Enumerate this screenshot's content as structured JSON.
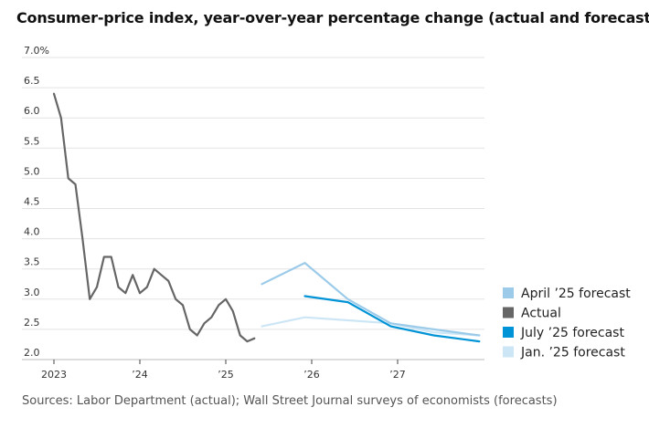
{
  "title": "Consumer-price index, year-over-year percentage change (actual and forecasts)",
  "source": "Sources: Labor Department (actual); Wall Street Journal surveys of economists (forecasts)",
  "chart_data": {
    "type": "line",
    "title": "Consumer-price index, year-over-year percentage change (actual and forecasts)",
    "xlabel": "",
    "ylabel": "",
    "ylim": [
      2.0,
      7.0
    ],
    "xlim": [
      2023.0,
      2027.95
    ],
    "grid": true,
    "legend_position": "right",
    "y_ticks": [
      {
        "value": 7.0,
        "label": "7.0%"
      },
      {
        "value": 6.5,
        "label": "6.5"
      },
      {
        "value": 6.0,
        "label": "6.0"
      },
      {
        "value": 5.5,
        "label": "5.5"
      },
      {
        "value": 5.0,
        "label": "5.0"
      },
      {
        "value": 4.5,
        "label": "4.5"
      },
      {
        "value": 4.0,
        "label": "4.0"
      },
      {
        "value": 3.5,
        "label": "3.5"
      },
      {
        "value": 3.0,
        "label": "3.0"
      },
      {
        "value": 2.5,
        "label": "2.5"
      },
      {
        "value": 2.0,
        "label": "2.0"
      }
    ],
    "x_ticks": [
      {
        "value": 2023,
        "label": "2023"
      },
      {
        "value": 2024,
        "label": "’24"
      },
      {
        "value": 2025,
        "label": "’25"
      },
      {
        "value": 2026,
        "label": "’26"
      },
      {
        "value": 2027,
        "label": "’27"
      }
    ],
    "series": [
      {
        "name": "Actual",
        "color": "#666666",
        "x": [
          2023.0,
          2023.083,
          2023.167,
          2023.25,
          2023.333,
          2023.417,
          2023.5,
          2023.583,
          2023.667,
          2023.75,
          2023.833,
          2023.917,
          2024.0,
          2024.083,
          2024.167,
          2024.25,
          2024.333,
          2024.417,
          2024.5,
          2024.583,
          2024.667,
          2024.75,
          2024.833,
          2024.917,
          2025.0,
          2025.083,
          2025.167,
          2025.25,
          2025.333
        ],
        "y": [
          6.4,
          6.0,
          5.0,
          4.9,
          4.0,
          3.0,
          3.2,
          3.7,
          3.7,
          3.2,
          3.1,
          3.4,
          3.1,
          3.2,
          3.5,
          3.4,
          3.3,
          3.0,
          2.9,
          2.5,
          2.4,
          2.6,
          2.7,
          2.9,
          3.0,
          2.8,
          2.4,
          2.3,
          2.35
        ]
      },
      {
        "name": "April ’25 forecast",
        "color": "#9ccbea",
        "x": [
          2025.42,
          2025.92,
          2026.42,
          2026.92,
          2027.42,
          2027.95
        ],
        "y": [
          3.25,
          3.6,
          3.0,
          2.6,
          2.5,
          2.4
        ]
      },
      {
        "name": "July ’25 forecast",
        "color": "#0093d6",
        "x": [
          2025.92,
          2026.42,
          2026.92,
          2027.42,
          2027.95
        ],
        "y": [
          3.05,
          2.95,
          2.55,
          2.4,
          2.3
        ]
      },
      {
        "name": "Jan. ’25 forecast",
        "color": "#cde6f5",
        "x": [
          2025.42,
          2025.92,
          2026.42,
          2026.92,
          2027.42,
          2027.95
        ],
        "y": [
          2.55,
          2.7,
          2.65,
          2.6,
          2.45,
          2.4
        ]
      }
    ],
    "legend": [
      {
        "label": "April ’25 forecast",
        "color": "#9ccbea"
      },
      {
        "label": "Actual",
        "color": "#666666"
      },
      {
        "label": "July ’25 forecast",
        "color": "#0093d6"
      },
      {
        "label": "Jan. ’25 forecast",
        "color": "#cde6f5"
      }
    ]
  }
}
